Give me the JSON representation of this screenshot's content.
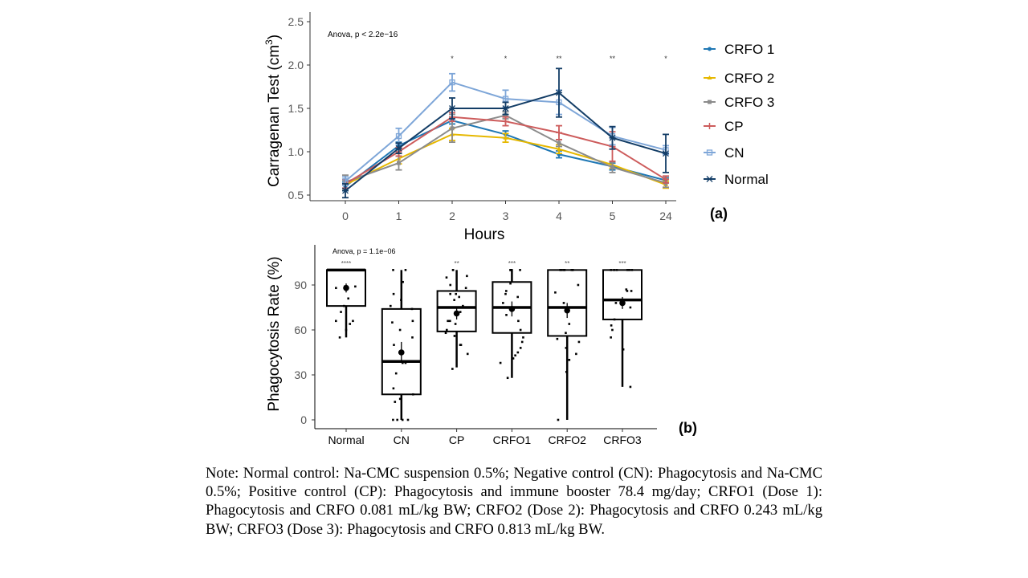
{
  "chart_data": [
    {
      "type": "line",
      "panel_label": "(a)",
      "title": "",
      "annotation": "Anova, p < 2.2e−16",
      "xlabel": "Hours",
      "ylabel_main": "Carragenan Test (cm",
      "ylabel_sup": "3",
      "ylabel_close": ")",
      "x": [
        "0",
        "1",
        "2",
        "3",
        "4",
        "5",
        "24"
      ],
      "ylim": [
        0.45,
        2.55
      ],
      "yticks": [
        0.5,
        1.0,
        1.5,
        2.0,
        2.5
      ],
      "ytick_labels": [
        "0.5",
        "1.0",
        "1.5",
        "2.0",
        "2.5"
      ],
      "significance": [
        "",
        "",
        "*",
        "*",
        "**",
        "**",
        "*"
      ],
      "grid": false,
      "legend_position": "right",
      "series": [
        {
          "name": "CRFO 1",
          "color": "#1f77b4",
          "marker": "dot",
          "values": [
            0.6,
            1.07,
            1.36,
            1.2,
            0.97,
            0.83,
            0.67
          ],
          "errors": [
            0.05,
            0.04,
            0.04,
            0.04,
            0.04,
            0.04,
            0.03
          ]
        },
        {
          "name": "CRFO 2",
          "color": "#e6b800",
          "marker": "triangle",
          "values": [
            0.62,
            0.92,
            1.2,
            1.16,
            1.03,
            0.85,
            0.62
          ],
          "errors": [
            0.05,
            0.06,
            0.07,
            0.05,
            0.05,
            0.04,
            0.04
          ]
        },
        {
          "name": "CRFO 3",
          "color": "#8c8c8c",
          "marker": "square",
          "values": [
            0.65,
            0.87,
            1.27,
            1.42,
            1.1,
            0.82,
            0.64
          ],
          "errors": [
            0.08,
            0.08,
            0.16,
            0.04,
            0.04,
            0.06,
            0.05
          ]
        },
        {
          "name": "CP",
          "color": "#cd5c5c",
          "marker": "plus",
          "values": [
            0.63,
            1.0,
            1.4,
            1.35,
            1.22,
            1.06,
            0.68
          ],
          "errors": [
            0.05,
            0.05,
            0.05,
            0.05,
            0.08,
            0.17,
            0.04
          ]
        },
        {
          "name": "CN",
          "color": "#7ea6d8",
          "marker": "open-square",
          "values": [
            0.66,
            1.18,
            1.8,
            1.61,
            1.57,
            1.18,
            1.02
          ],
          "errors": [
            0.05,
            0.09,
            0.1,
            0.1,
            0.14,
            0.1,
            0.05
          ]
        },
        {
          "name": "Normal",
          "color": "#133d66",
          "marker": "star",
          "values": [
            0.55,
            1.04,
            1.5,
            1.5,
            1.68,
            1.16,
            0.98
          ],
          "errors": [
            0.08,
            0.06,
            0.12,
            0.07,
            0.28,
            0.13,
            0.22
          ]
        }
      ]
    },
    {
      "type": "box",
      "panel_label": "(b)",
      "annotation": "Anova, p = 1.1e−06",
      "xlabel": "",
      "ylabel": "Phagocytosis Rate (%)",
      "ylim": [
        -3,
        113
      ],
      "yticks": [
        0,
        30,
        60,
        90
      ],
      "ytick_labels": [
        "0",
        "30",
        "60",
        "90"
      ],
      "grid": false,
      "categories": [
        "Normal",
        "CN",
        "CP",
        "CRFO1",
        "CRFO2",
        "CRFO3"
      ],
      "significance": [
        "****",
        "",
        "**",
        "***",
        "**",
        "***"
      ],
      "boxes": [
        {
          "name": "Normal",
          "whisker_low": 55,
          "q1": 76,
          "median": 100,
          "q3": 100,
          "whisker_high": 100,
          "mean": 88,
          "mean_err": 3,
          "points": [
            100,
            100,
            100,
            100,
            89,
            88,
            88,
            89,
            81,
            76,
            72,
            66,
            64,
            66,
            60,
            55
          ]
        },
        {
          "name": "CN",
          "whisker_low": 0,
          "q1": 17,
          "median": 39,
          "q3": 74,
          "whisker_high": 100,
          "mean": 45,
          "mean_err": 7,
          "points": [
            100,
            100,
            92,
            80,
            84,
            76,
            74,
            66,
            65,
            60,
            55,
            50,
            45,
            38,
            38,
            31,
            21,
            17,
            14,
            12,
            0,
            0,
            0,
            0
          ]
        },
        {
          "name": "CP",
          "whisker_low": 35,
          "q1": 59,
          "median": 75,
          "q3": 86,
          "whisker_high": 100,
          "mean": 71,
          "mean_err": 4,
          "points": [
            100,
            100,
            95,
            96,
            90,
            88,
            84,
            84,
            82,
            80,
            76,
            72,
            66,
            66,
            64,
            60,
            58,
            56,
            50,
            50,
            44,
            34
          ]
        },
        {
          "name": "CRFO1",
          "whisker_low": 28,
          "q1": 58,
          "median": 75,
          "q3": 92,
          "whisker_high": 100,
          "mean": 74,
          "mean_err": 5,
          "points": [
            100,
            100,
            100,
            100,
            100,
            91,
            86,
            84,
            82,
            78,
            70,
            66,
            60,
            55,
            52,
            48,
            45,
            43,
            41,
            38,
            28
          ]
        },
        {
          "name": "CRFO2",
          "whisker_low": 0,
          "q1": 56,
          "median": 75,
          "q3": 100,
          "whisker_high": 100,
          "mean": 73,
          "mean_err": 5,
          "points": [
            100,
            100,
            100,
            100,
            100,
            100,
            90,
            85,
            78,
            64,
            58,
            54,
            52,
            48,
            44,
            40,
            32,
            0
          ]
        },
        {
          "name": "CRFO3",
          "whisker_low": 22,
          "q1": 67,
          "median": 80,
          "q3": 100,
          "whisker_high": 100,
          "mean": 78,
          "mean_err": 4,
          "points": [
            100,
            100,
            100,
            100,
            100,
            100,
            86,
            87,
            86,
            78,
            75,
            67,
            63,
            60,
            55,
            47,
            22
          ]
        }
      ]
    }
  ],
  "note": {
    "prefix": "Note:",
    "text": "Normal control: Na-CMC suspension 0.5%; Negative control (CN): Phagocytosis and Na-CMC 0.5%; Positive control (CP): Phagocytosis and immune booster 78.4 mg/day; CRFO1 (Dose 1): Phagocytosis and CRFO 0.081 mL/kg BW; CRFO2 (Dose 2): Phagocytosis and CRFO 0.243 mL/kg BW; CRFO3 (Dose 3): Phagocytosis and CRFO 0.813 mL/kg BW."
  }
}
